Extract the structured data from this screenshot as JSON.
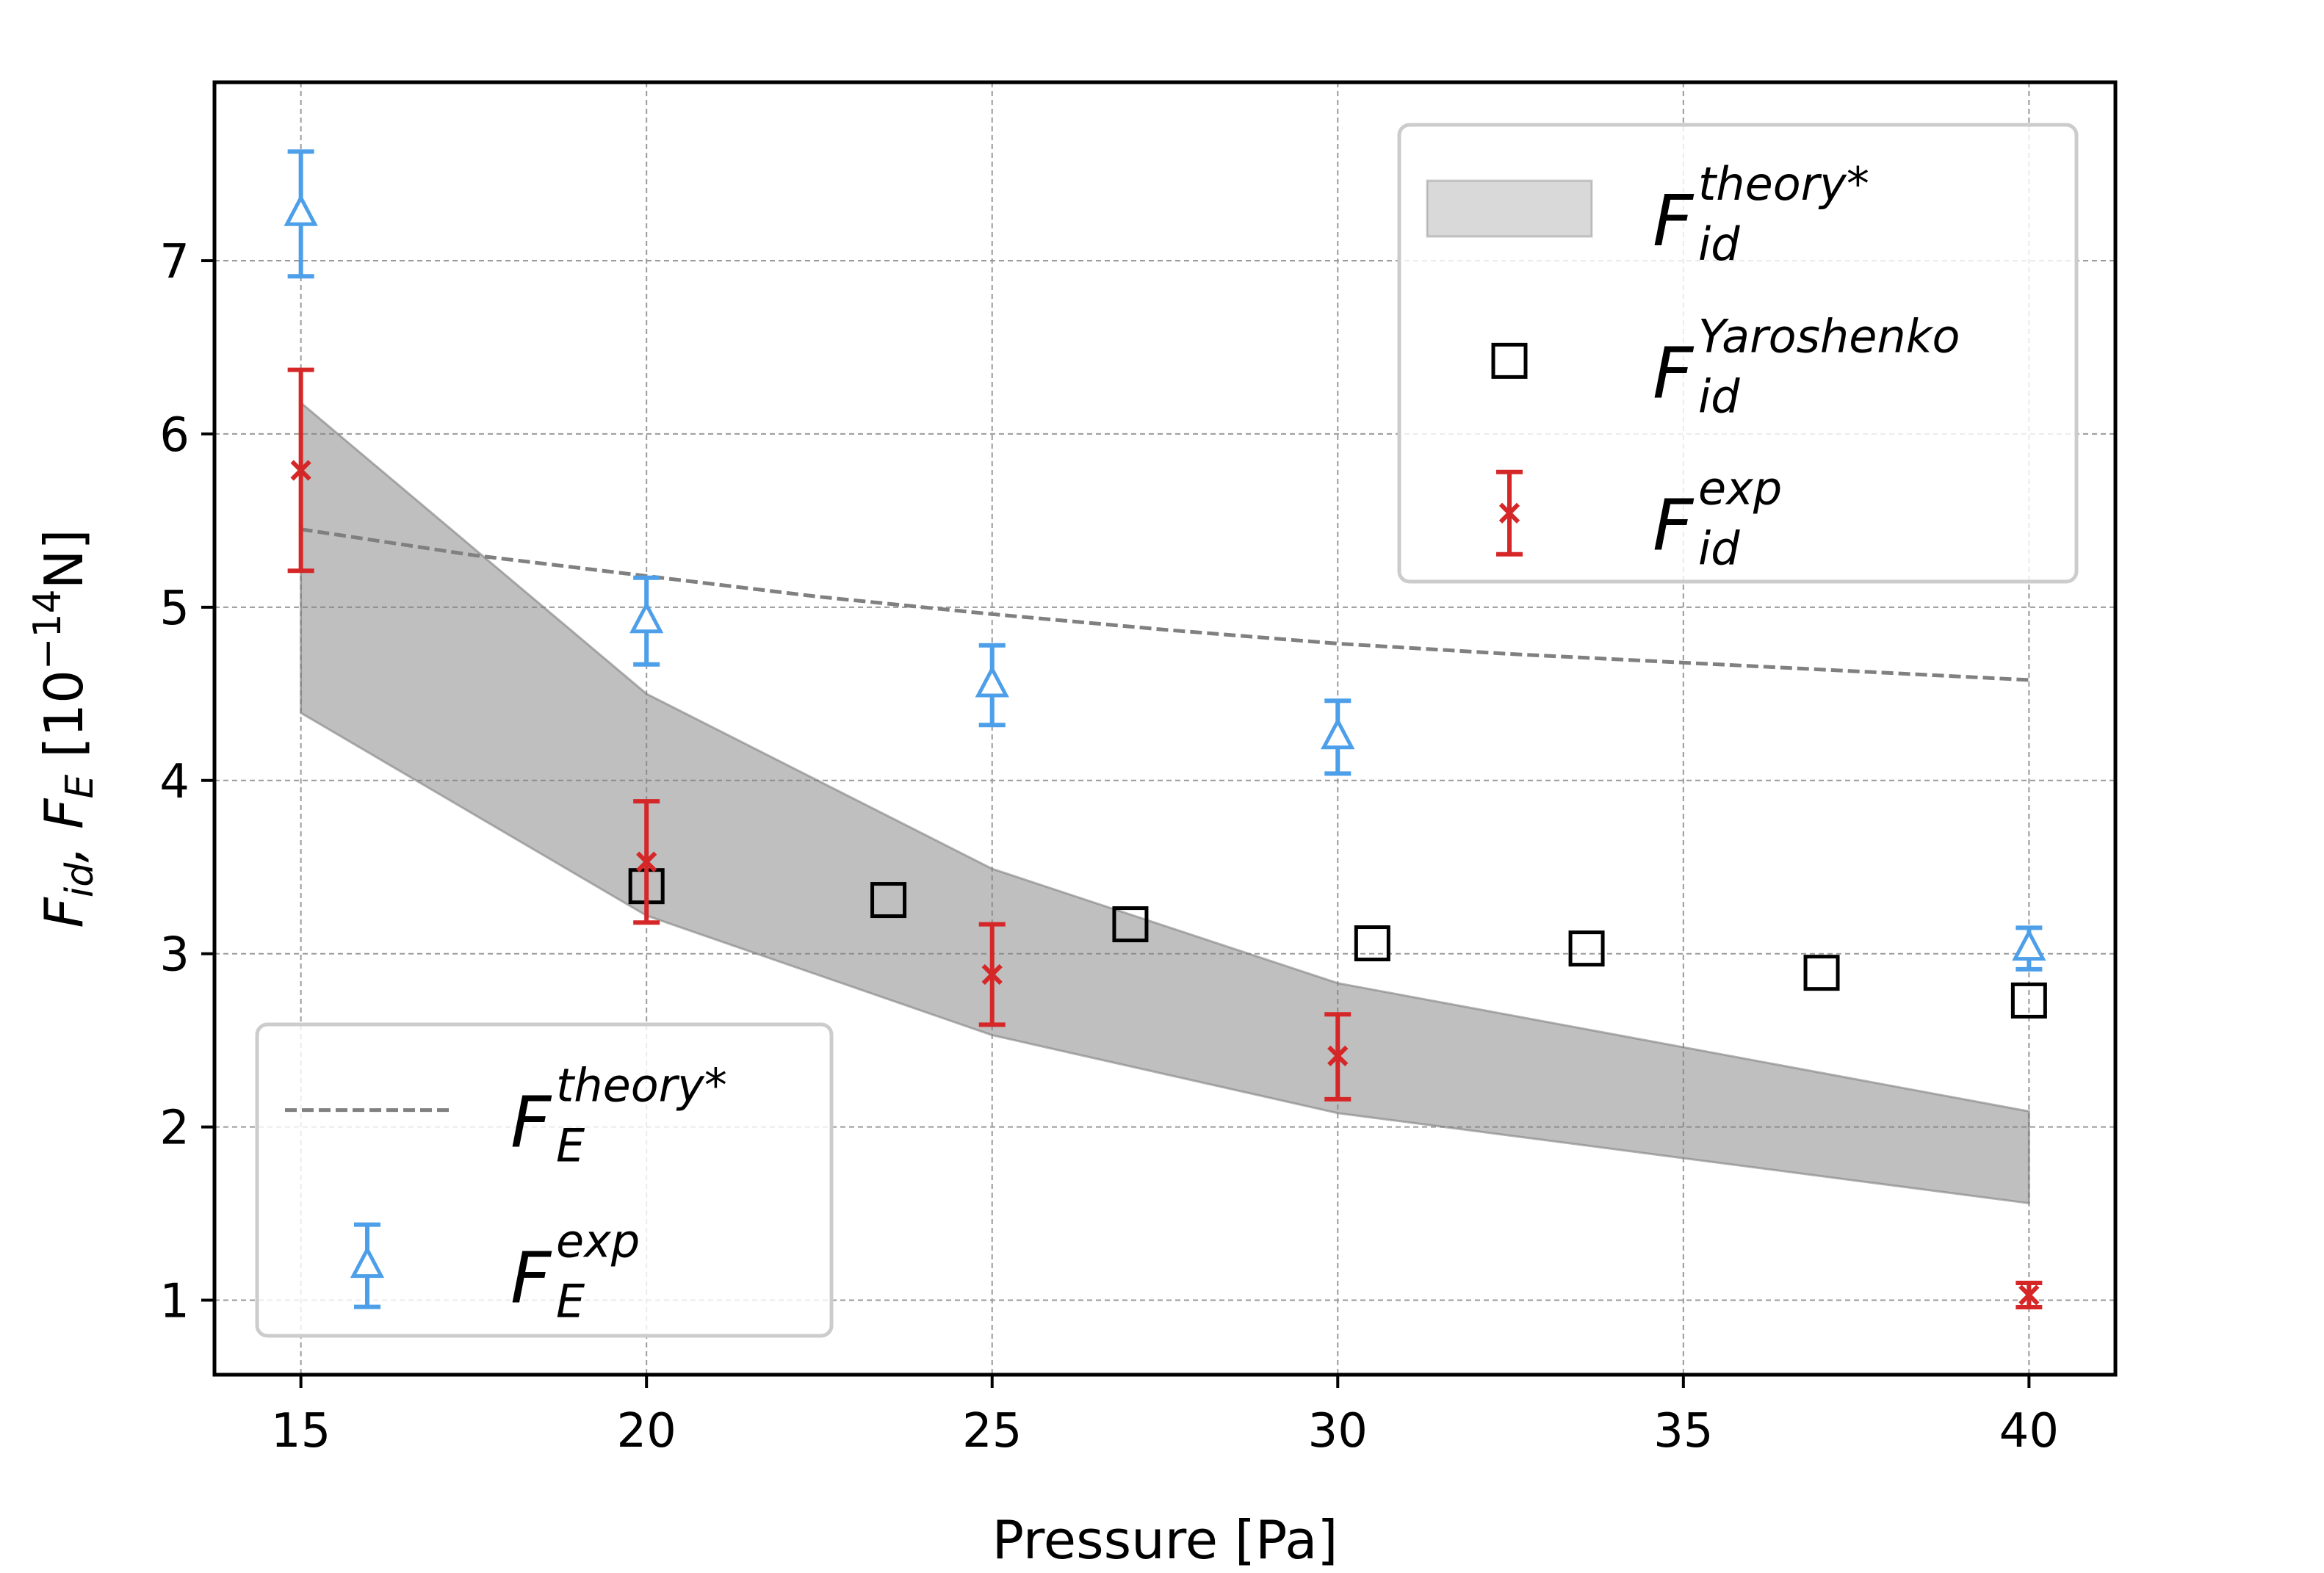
{
  "chart_data": {
    "type": "scatter",
    "title": "",
    "xlabel": "Pressure [Pa]",
    "ylabel_parts": {
      "f1": "F",
      "s1": "id",
      "sep": ", ",
      "f2": "F",
      "s2": "E",
      "unit_open": " [10",
      "exp": "−14",
      "unit_close": "N]"
    },
    "xlim": [
      13.75,
      41.25
    ],
    "ylim": [
      0.57,
      8.03
    ],
    "xticks": [
      15,
      20,
      25,
      30,
      35,
      40
    ],
    "yticks": [
      1,
      2,
      3,
      4,
      5,
      6,
      7
    ],
    "grid": true,
    "legends": [
      {
        "placement": "upper right",
        "entries": [
          {
            "key": "band",
            "base": "F",
            "sub": "id",
            "sup": "theory*"
          },
          {
            "key": "yaroshenko",
            "base": "F",
            "sub": "id",
            "sup": "Yaroshenko"
          },
          {
            "key": "fid_exp",
            "base": "F",
            "sub": "id",
            "sup": "exp"
          }
        ]
      },
      {
        "placement": "lower left",
        "entries": [
          {
            "key": "fe_theory",
            "base": "F",
            "sub": "E",
            "sup": "theory*"
          },
          {
            "key": "fe_exp",
            "base": "F",
            "sub": "E",
            "sup": "exp"
          }
        ]
      }
    ],
    "series": [
      {
        "key": "band",
        "kind": "band",
        "color": "#808080",
        "x": [
          15,
          20,
          25,
          30,
          40
        ],
        "lower": [
          4.39,
          3.22,
          2.53,
          2.08,
          1.56
        ],
        "upper": [
          6.18,
          4.5,
          3.49,
          2.83,
          2.09
        ]
      },
      {
        "key": "fe_theory",
        "kind": "dashed-line",
        "color": "#808080",
        "x": [
          15,
          17.5,
          20,
          22.5,
          25,
          27.5,
          30,
          32.5,
          35,
          37.5,
          40
        ],
        "y": [
          5.45,
          5.3,
          5.18,
          5.06,
          4.96,
          4.87,
          4.79,
          4.73,
          4.68,
          4.63,
          4.58
        ]
      },
      {
        "key": "yaroshenko",
        "kind": "open-squares",
        "color": "#000000",
        "x": [
          20,
          23.5,
          27,
          30.5,
          33.6,
          37,
          40
        ],
        "y": [
          3.39,
          3.31,
          3.17,
          3.06,
          3.03,
          2.89,
          2.73
        ]
      },
      {
        "key": "fid_exp",
        "kind": "x-errorbars",
        "color": "#d62728",
        "x": [
          15,
          20,
          25,
          30,
          40
        ],
        "y": [
          5.79,
          3.53,
          2.88,
          2.41,
          1.03
        ],
        "yerr_low": [
          0.58,
          0.35,
          0.29,
          0.25,
          0.07
        ],
        "yerr_high": [
          0.58,
          0.35,
          0.29,
          0.24,
          0.07
        ]
      },
      {
        "key": "fe_exp",
        "kind": "triangle-errorbars",
        "color": "#4c9fe8",
        "x": [
          15,
          20,
          25,
          30,
          40
        ],
        "y": [
          7.27,
          4.92,
          4.55,
          4.25,
          3.03
        ],
        "yerr_low": [
          0.36,
          0.25,
          0.23,
          0.21,
          0.12
        ],
        "yerr_high": [
          0.36,
          0.25,
          0.23,
          0.21,
          0.12
        ]
      }
    ]
  }
}
